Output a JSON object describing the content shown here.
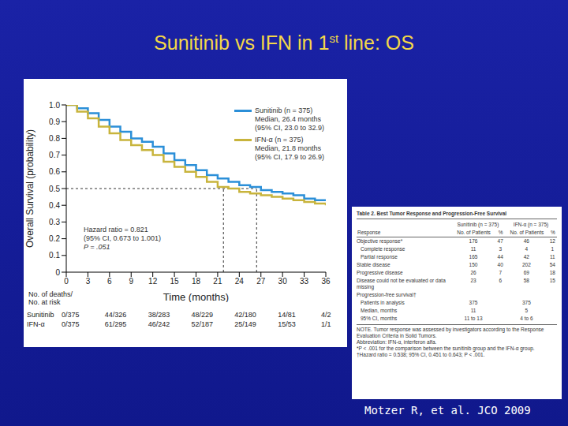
{
  "slide": {
    "title": "Sunitinib vs IFN in 1st line: OS",
    "citation": "Motzer R, et al. JCO 2009"
  },
  "chart_data": {
    "type": "line",
    "line_style": "step",
    "grid": false,
    "legend": "upper right",
    "x_label": "Time (months)",
    "y_label": "Overall Survival (probability)",
    "x": [
      0,
      1.5,
      3,
      4.5,
      6,
      7.5,
      9,
      10.5,
      12,
      13.5,
      15,
      16.5,
      18,
      19.5,
      21,
      22.5,
      24,
      25.5,
      27,
      28.5,
      30,
      31.5,
      33,
      34.5,
      36
    ],
    "xlim": [
      0,
      36
    ],
    "xticks": [
      0,
      3,
      6,
      9,
      12,
      15,
      18,
      21,
      24,
      27,
      30,
      33,
      36
    ],
    "ylim": [
      0,
      1
    ],
    "yticks": [
      0,
      0.1,
      0.2,
      0.3,
      0.4,
      0.5,
      0.6,
      0.7,
      0.8,
      0.9,
      {
        "value": 1,
        "label": "1.0"
      }
    ],
    "median_probability": 0.5,
    "series": [
      {
        "name": "Sunitinib (n = 375)",
        "color": "#2b8fd8",
        "median": 26.4,
        "legend_text": [
          "Median, 26.4 months",
          "(95% CI, 23.0 to 32.9)"
        ],
        "values": [
          1.0,
          0.98,
          0.95,
          0.91,
          0.87,
          0.84,
          0.8,
          0.78,
          0.75,
          0.71,
          0.67,
          0.64,
          0.61,
          0.58,
          0.56,
          0.54,
          0.52,
          0.51,
          0.49,
          0.48,
          0.47,
          0.46,
          0.44,
          0.43,
          0.43
        ]
      },
      {
        "name": "IFN-α (n = 375)",
        "color": "#c8b43c",
        "median": 21.8,
        "legend_text": [
          "Median, 21.8 months",
          "(95% CI, 17.9 to 26.9)"
        ],
        "values": [
          1.0,
          0.96,
          0.92,
          0.87,
          0.83,
          0.79,
          0.76,
          0.73,
          0.7,
          0.66,
          0.63,
          0.6,
          0.57,
          0.54,
          0.51,
          0.5,
          0.48,
          0.47,
          0.46,
          0.45,
          0.44,
          0.43,
          0.42,
          0.41,
          0.4
        ]
      }
    ],
    "annotation": [
      "Hazard ratio = 0.821",
      "(95% CI, 0.673 to 1.001)",
      "P = .051"
    ],
    "at_risk": {
      "header": [
        "No. of deaths/",
        "No. at risk"
      ],
      "times": [
        0,
        6,
        12,
        18,
        24,
        30,
        36
      ],
      "rows": [
        {
          "name": "Sunitinib",
          "values": [
            "0/375",
            "44/326",
            "38/283",
            "48/229",
            "42/180",
            "14/81",
            "4/2"
          ]
        },
        {
          "name": "IFN-α",
          "values": [
            "0/375",
            "61/295",
            "46/242",
            "52/187",
            "25/149",
            "15/53",
            "1/1"
          ]
        }
      ]
    }
  },
  "table": {
    "title": "Table 2. Best Tumor Response and Progression-Free Survival",
    "group_headers": [
      "Sunitinib (n = 375)",
      "IFN-α (n = 375)"
    ],
    "column_headers": [
      "Response",
      "No. of Patients",
      "%",
      "No. of Patients",
      "%"
    ],
    "rows": [
      [
        "Objective response*",
        "176",
        "47",
        "46",
        "12"
      ],
      [
        "Complete response",
        "11",
        "3",
        "4",
        "1"
      ],
      [
        "Partial response",
        "165",
        "44",
        "42",
        "11"
      ],
      [
        "Stable disease",
        "150",
        "40",
        "202",
        "54"
      ],
      [
        "Progressive disease",
        "26",
        "7",
        "69",
        "18"
      ],
      [
        "Disease could not be evaluated or data missing",
        "23",
        "6",
        "58",
        "15"
      ],
      [
        "Progression-free survival†",
        null,
        null,
        null,
        null
      ],
      [
        "Patients in analysis",
        "375",
        null,
        "375",
        null
      ],
      [
        "Median, months",
        "11",
        null,
        "5",
        null
      ],
      [
        "95% CI, months",
        "11 to 13",
        null,
        "4 to 6",
        null
      ]
    ],
    "notes": [
      "NOTE. Tumor response was assessed by investigators according to the Response Evaluation Criteria in Solid Tumors.",
      "Abbreviation: IFN-α, interferon alfa.",
      "*P < .001 for the comparison between the sunitinib group and the IFN-α group.",
      "†Hazard ratio = 0.538; 95% CI, 0.451 to 0.643; P < .001."
    ]
  }
}
